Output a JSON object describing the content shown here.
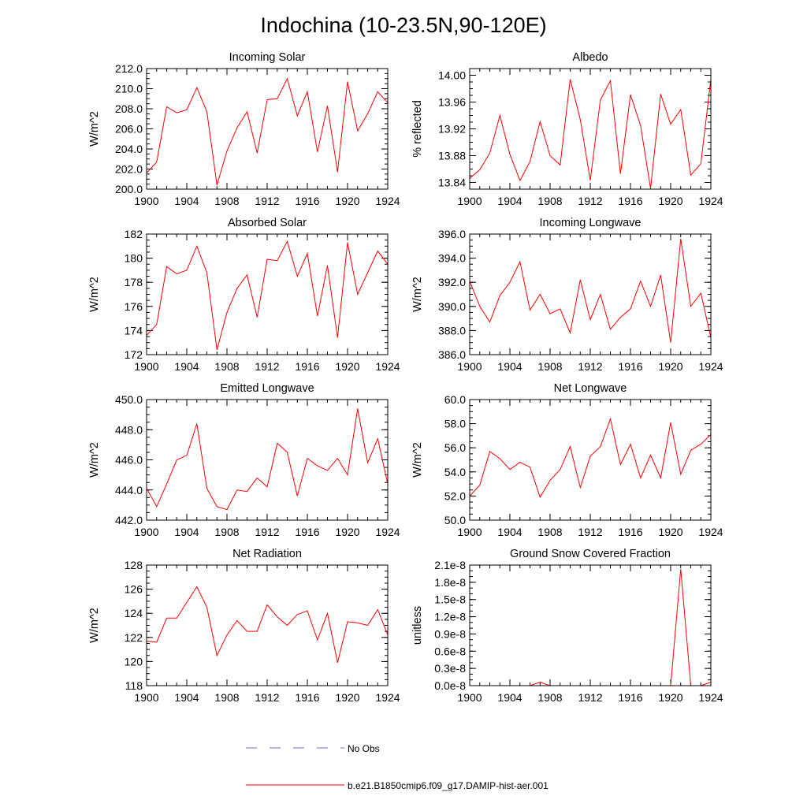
{
  "figure_title": "Indochina (10-23.5N,90-120E)",
  "legend": [
    {
      "label": "No Obs",
      "color": "#6b6bd6",
      "style": "dashed"
    },
    {
      "label": "b.e21.B1850cmip6.f09_g17.DAMIP-hist-aer.001",
      "color": "#ff0000",
      "style": "solid"
    }
  ],
  "chart_data": [
    {
      "type": "line",
      "title": "Incoming Solar",
      "ylabel": "W/m^2",
      "xlabel": "",
      "xlim": [
        1900,
        1924
      ],
      "ylim": [
        200,
        212
      ],
      "xticks": [
        1900,
        1904,
        1908,
        1912,
        1916,
        1920,
        1924
      ],
      "xticklabels": [
        "1900",
        "1904",
        "1908",
        "1912",
        "1916",
        "1920",
        "1924"
      ],
      "yticks": [
        200,
        202,
        204,
        206,
        208,
        210,
        212
      ],
      "yticklabels": [
        "200.0",
        "202.0",
        "204.0",
        "206.0",
        "208.0",
        "210.0",
        "212.0"
      ],
      "x": [
        1900,
        1901,
        1902,
        1903,
        1904,
        1905,
        1906,
        1907,
        1908,
        1909,
        1910,
        1911,
        1912,
        1913,
        1914,
        1915,
        1916,
        1917,
        1918,
        1919,
        1920,
        1921,
        1922,
        1923,
        1924
      ],
      "series": [
        {
          "color": "#ff0000",
          "values": [
            201.6,
            202.7,
            208.2,
            207.6,
            207.9,
            210.1,
            207.7,
            200.4,
            203.8,
            206.1,
            207.7,
            203.6,
            208.9,
            209.0,
            211.0,
            207.3,
            209.7,
            203.7,
            208.3,
            201.7,
            210.7,
            205.8,
            207.5,
            209.7,
            208.6
          ]
        }
      ]
    },
    {
      "type": "line",
      "title": "Albedo",
      "ylabel": "% reflected",
      "xlabel": "",
      "xlim": [
        1900,
        1924
      ],
      "ylim": [
        13.83,
        14.01
      ],
      "xticks": [
        1900,
        1904,
        1908,
        1912,
        1916,
        1920,
        1924
      ],
      "xticklabels": [
        "1900",
        "1904",
        "1908",
        "1912",
        "1916",
        "1920",
        "1924"
      ],
      "yticks": [
        13.84,
        13.88,
        13.92,
        13.96,
        14.0
      ],
      "yticklabels": [
        "13.84",
        "13.88",
        "13.92",
        "13.96",
        "14.00"
      ],
      "x": [
        1900,
        1901,
        1902,
        1903,
        1904,
        1905,
        1906,
        1907,
        1908,
        1909,
        1910,
        1911,
        1912,
        1913,
        1914,
        1915,
        1916,
        1917,
        1918,
        1919,
        1920,
        1921,
        1922,
        1923,
        1924
      ],
      "series": [
        {
          "color": "#ff0000",
          "values": [
            13.846,
            13.859,
            13.884,
            13.94,
            13.882,
            13.843,
            13.871,
            13.931,
            13.88,
            13.866,
            13.994,
            13.934,
            13.843,
            13.963,
            13.992,
            13.853,
            13.971,
            13.925,
            13.831,
            13.972,
            13.927,
            13.949,
            13.851,
            13.868,
            13.994
          ]
        }
      ]
    },
    {
      "type": "line",
      "title": "Absorbed Solar",
      "ylabel": "W/m^2",
      "xlabel": "",
      "xlim": [
        1900,
        1924
      ],
      "ylim": [
        172,
        182
      ],
      "xticks": [
        1900,
        1904,
        1908,
        1912,
        1916,
        1920,
        1924
      ],
      "xticklabels": [
        "1900",
        "1904",
        "1908",
        "1912",
        "1916",
        "1920",
        "1924"
      ],
      "yticks": [
        172,
        174,
        176,
        178,
        180,
        182
      ],
      "yticklabels": [
        "172",
        "174",
        "176",
        "178",
        "180",
        "182"
      ],
      "x": [
        1900,
        1901,
        1902,
        1903,
        1904,
        1905,
        1906,
        1907,
        1908,
        1909,
        1910,
        1911,
        1912,
        1913,
        1914,
        1915,
        1916,
        1917,
        1918,
        1919,
        1920,
        1921,
        1922,
        1923,
        1924
      ],
      "series": [
        {
          "color": "#ff0000",
          "values": [
            173.6,
            174.5,
            179.3,
            178.7,
            179.0,
            181.0,
            178.8,
            172.4,
            175.5,
            177.5,
            178.6,
            175.1,
            179.9,
            179.8,
            181.4,
            178.5,
            180.4,
            175.2,
            179.4,
            173.4,
            181.3,
            177.0,
            178.8,
            180.6,
            179.5
          ]
        }
      ]
    },
    {
      "type": "line",
      "title": "Incoming Longwave",
      "ylabel": "W/m^2",
      "xlabel": "",
      "xlim": [
        1900,
        1924
      ],
      "ylim": [
        386,
        396
      ],
      "xticks": [
        1900,
        1904,
        1908,
        1912,
        1916,
        1920,
        1924
      ],
      "xticklabels": [
        "1900",
        "1904",
        "1908",
        "1912",
        "1916",
        "1920",
        "1924"
      ],
      "yticks": [
        386,
        388,
        390,
        392,
        394,
        396
      ],
      "yticklabels": [
        "386.0",
        "388.0",
        "390.0",
        "392.0",
        "394.0",
        "396.0"
      ],
      "x": [
        1900,
        1901,
        1902,
        1903,
        1904,
        1905,
        1906,
        1907,
        1908,
        1909,
        1910,
        1911,
        1912,
        1913,
        1914,
        1915,
        1916,
        1917,
        1918,
        1919,
        1920,
        1921,
        1922,
        1923,
        1924
      ],
      "series": [
        {
          "color": "#ff0000",
          "values": [
            392.1,
            390.0,
            388.7,
            390.9,
            392.0,
            393.7,
            389.7,
            391.0,
            389.4,
            389.8,
            387.8,
            392.2,
            388.9,
            391.0,
            388.1,
            389.1,
            389.8,
            392.1,
            390.0,
            392.6,
            387.0,
            395.6,
            390.0,
            391.1,
            387.4
          ]
        }
      ]
    },
    {
      "type": "line",
      "title": "Emitted Longwave",
      "ylabel": "W/m^2",
      "xlabel": "",
      "xlim": [
        1900,
        1924
      ],
      "ylim": [
        442,
        450
      ],
      "xticks": [
        1900,
        1904,
        1908,
        1912,
        1916,
        1920,
        1924
      ],
      "xticklabels": [
        "1900",
        "1904",
        "1908",
        "1912",
        "1916",
        "1920",
        "1924"
      ],
      "yticks": [
        442,
        444,
        446,
        448,
        450
      ],
      "yticklabels": [
        "442.0",
        "444.0",
        "446.0",
        "448.0",
        "450.0"
      ],
      "x": [
        1900,
        1901,
        1902,
        1903,
        1904,
        1905,
        1906,
        1907,
        1908,
        1909,
        1910,
        1911,
        1912,
        1913,
        1914,
        1915,
        1916,
        1917,
        1918,
        1919,
        1920,
        1921,
        1922,
        1923,
        1924
      ],
      "series": [
        {
          "color": "#ff0000",
          "values": [
            444.1,
            442.9,
            444.4,
            446.0,
            446.3,
            448.4,
            444.1,
            442.9,
            442.7,
            444.0,
            443.9,
            444.8,
            444.2,
            447.1,
            446.5,
            443.6,
            446.1,
            445.6,
            445.3,
            446.1,
            445.0,
            449.4,
            445.8,
            447.4,
            444.4
          ]
        }
      ]
    },
    {
      "type": "line",
      "title": "Net Longwave",
      "ylabel": "W/m^2",
      "xlabel": "",
      "xlim": [
        1900,
        1924
      ],
      "ylim": [
        50,
        60
      ],
      "xticks": [
        1900,
        1904,
        1908,
        1912,
        1916,
        1920,
        1924
      ],
      "xticklabels": [
        "1900",
        "1904",
        "1908",
        "1912",
        "1916",
        "1920",
        "1924"
      ],
      "yticks": [
        50,
        52,
        54,
        56,
        58,
        60
      ],
      "yticklabels": [
        "50.0",
        "52.0",
        "54.0",
        "56.0",
        "58.0",
        "60.0"
      ],
      "x": [
        1900,
        1901,
        1902,
        1903,
        1904,
        1905,
        1906,
        1907,
        1908,
        1909,
        1910,
        1911,
        1912,
        1913,
        1914,
        1915,
        1916,
        1917,
        1918,
        1919,
        1920,
        1921,
        1922,
        1923,
        1924
      ],
      "series": [
        {
          "color": "#ff0000",
          "values": [
            52.0,
            52.9,
            55.7,
            55.1,
            54.2,
            54.8,
            54.4,
            51.9,
            53.3,
            54.2,
            56.1,
            52.7,
            55.3,
            56.1,
            58.4,
            54.6,
            56.3,
            53.5,
            55.4,
            53.5,
            58.1,
            53.8,
            55.8,
            56.3,
            57.1
          ]
        }
      ]
    },
    {
      "type": "line",
      "title": "Net Radiation",
      "ylabel": "W/m^2",
      "xlabel": "",
      "xlim": [
        1900,
        1924
      ],
      "ylim": [
        118,
        128
      ],
      "xticks": [
        1900,
        1904,
        1908,
        1912,
        1916,
        1920,
        1924
      ],
      "xticklabels": [
        "1900",
        "1904",
        "1908",
        "1912",
        "1916",
        "1920",
        "1924"
      ],
      "yticks": [
        118,
        120,
        122,
        124,
        126,
        128
      ],
      "yticklabels": [
        "118",
        "120",
        "122",
        "124",
        "126",
        "128"
      ],
      "x": [
        1900,
        1901,
        1902,
        1903,
        1904,
        1905,
        1906,
        1907,
        1908,
        1909,
        1910,
        1911,
        1912,
        1913,
        1914,
        1915,
        1916,
        1917,
        1918,
        1919,
        1920,
        1921,
        1922,
        1923,
        1924
      ],
      "series": [
        {
          "color": "#ff0000",
          "values": [
            121.7,
            121.6,
            123.6,
            123.6,
            124.9,
            126.2,
            124.5,
            120.5,
            122.2,
            123.4,
            122.5,
            122.5,
            124.7,
            123.7,
            123.0,
            123.9,
            124.2,
            121.8,
            124.0,
            119.9,
            123.3,
            123.2,
            123.0,
            124.3,
            122.2
          ]
        }
      ]
    },
    {
      "type": "line",
      "title": "Ground Snow Covered Fraction",
      "ylabel": "unitless",
      "xlabel": "",
      "xlim": [
        1900,
        1924
      ],
      "ylim": [
        0,
        2.1e-08
      ],
      "xticks": [
        1900,
        1904,
        1908,
        1912,
        1916,
        1920,
        1924
      ],
      "xticklabels": [
        "1900",
        "1904",
        "1908",
        "1912",
        "1916",
        "1920",
        "1924"
      ],
      "yticks": [
        0,
        3e-09,
        6e-09,
        9e-09,
        1.2e-08,
        1.5e-08,
        1.8e-08,
        2.1e-08
      ],
      "yticklabels": [
        "0.0e-8",
        "0.3e-8",
        "0.6e-8",
        "0.9e-8",
        "1.2e-8",
        "1.5e-8",
        "1.8e-8",
        "2.1e-8"
      ],
      "x": [
        1900,
        1901,
        1902,
        1903,
        1904,
        1905,
        1906,
        1907,
        1908,
        1909,
        1910,
        1911,
        1912,
        1913,
        1914,
        1915,
        1916,
        1917,
        1918,
        1919,
        1920,
        1921,
        1922,
        1923,
        1924
      ],
      "series": [
        {
          "color": "#ff0000",
          "values": [
            0,
            0,
            0,
            0,
            0,
            0,
            0,
            6e-10,
            0,
            0,
            0,
            0,
            0,
            0,
            0,
            0,
            0,
            0,
            0,
            0,
            0,
            2.03e-08,
            0,
            0,
            6e-10
          ]
        }
      ]
    }
  ]
}
